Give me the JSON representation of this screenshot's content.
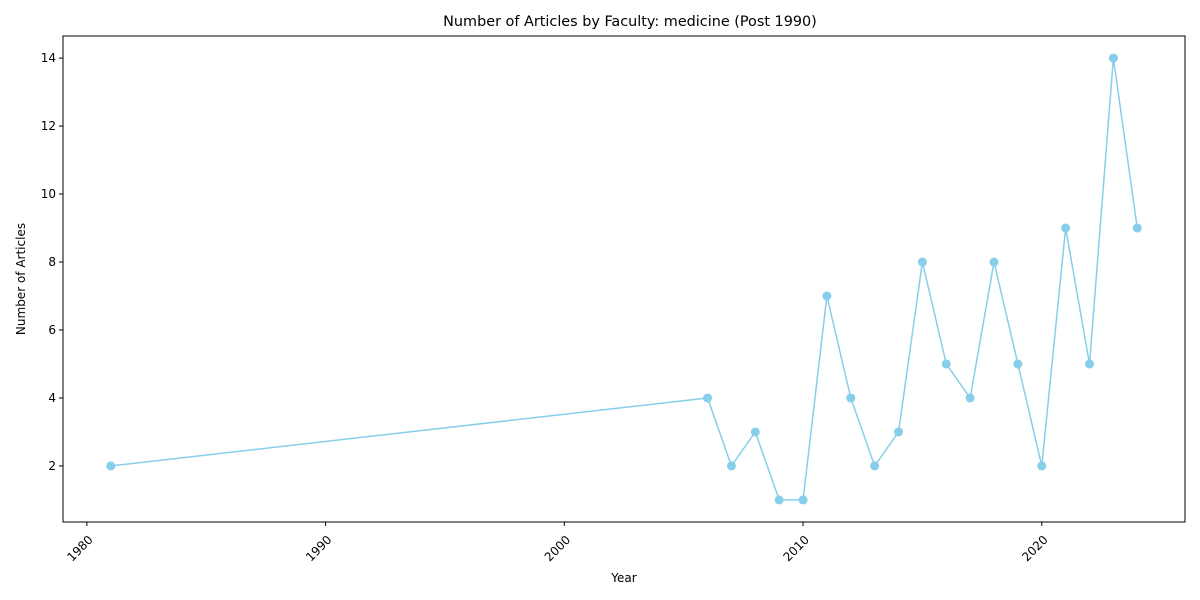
{
  "chart_data": {
    "type": "line",
    "title": "Number of Articles by Faculty: medicine (Post 1990)",
    "xlabel": "Year",
    "ylabel": "Number of Articles",
    "xlim": [
      1979,
      2026
    ],
    "ylim": [
      0.35,
      14.65
    ],
    "x_ticks": [
      1980,
      1990,
      2000,
      2010,
      2020
    ],
    "y_ticks": [
      2,
      4,
      6,
      8,
      10,
      12,
      14
    ],
    "grid": false,
    "legend": "none",
    "color": "#87ceeb",
    "marker": "circle",
    "series": [
      {
        "x": [
          1981,
          2006,
          2007,
          2008,
          2009,
          2010,
          2011,
          2012,
          2013,
          2014,
          2015,
          2016,
          2017,
          2018,
          2019,
          2020,
          2021,
          2022,
          2023,
          2024
        ],
        "y": [
          2,
          4,
          2,
          3,
          1,
          1,
          7,
          4,
          2,
          3,
          8,
          5,
          4,
          8,
          5,
          2,
          9,
          5,
          14,
          9
        ]
      }
    ]
  }
}
